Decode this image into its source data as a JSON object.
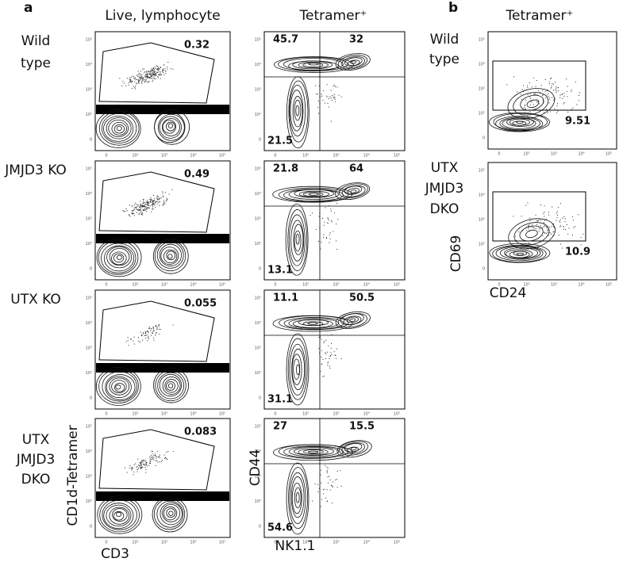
{
  "panel_a": {
    "label": "a",
    "column_headers": [
      "Live, lymphocyte",
      "Tetramer⁺"
    ],
    "rows": [
      {
        "label": [
          "Wild",
          "type"
        ],
        "gate": "0.32",
        "quadrants": {
          "upper_left": "45.7",
          "upper_right": "32",
          "lower_left": "21.5"
        }
      },
      {
        "label": [
          "JMJD3 KO"
        ],
        "gate": "0.49",
        "quadrants": {
          "upper_left": "21.8",
          "upper_right": "64",
          "lower_left": "13.1"
        }
      },
      {
        "label": [
          "UTX KO"
        ],
        "gate": "0.055",
        "quadrants": {
          "upper_left": "11.1",
          "upper_right": "50.5",
          "lower_left": "31.1"
        }
      },
      {
        "label": [
          "UTX",
          "JMJD3",
          "DKO"
        ],
        "gate": "0.083",
        "quadrants": {
          "upper_left": "27",
          "upper_right": "15.5",
          "lower_left": "54.6"
        }
      }
    ],
    "x_axes": [
      "CD3",
      "NK1.1"
    ],
    "y_axes": [
      "CD1d-Tetramer",
      "CD44"
    ]
  },
  "panel_b": {
    "label": "b",
    "column_header": "Tetramer⁺",
    "rows": [
      {
        "label": [
          "Wild",
          "type"
        ],
        "gate": "9.51"
      },
      {
        "label": [
          "UTX",
          "JMJD3",
          "DKO"
        ],
        "gate": "10.9"
      }
    ],
    "x_axis": "CD24",
    "y_axis": "CD69"
  },
  "axis_ticks": [
    "0",
    "10²",
    "10³",
    "10⁴",
    "10⁵"
  ]
}
